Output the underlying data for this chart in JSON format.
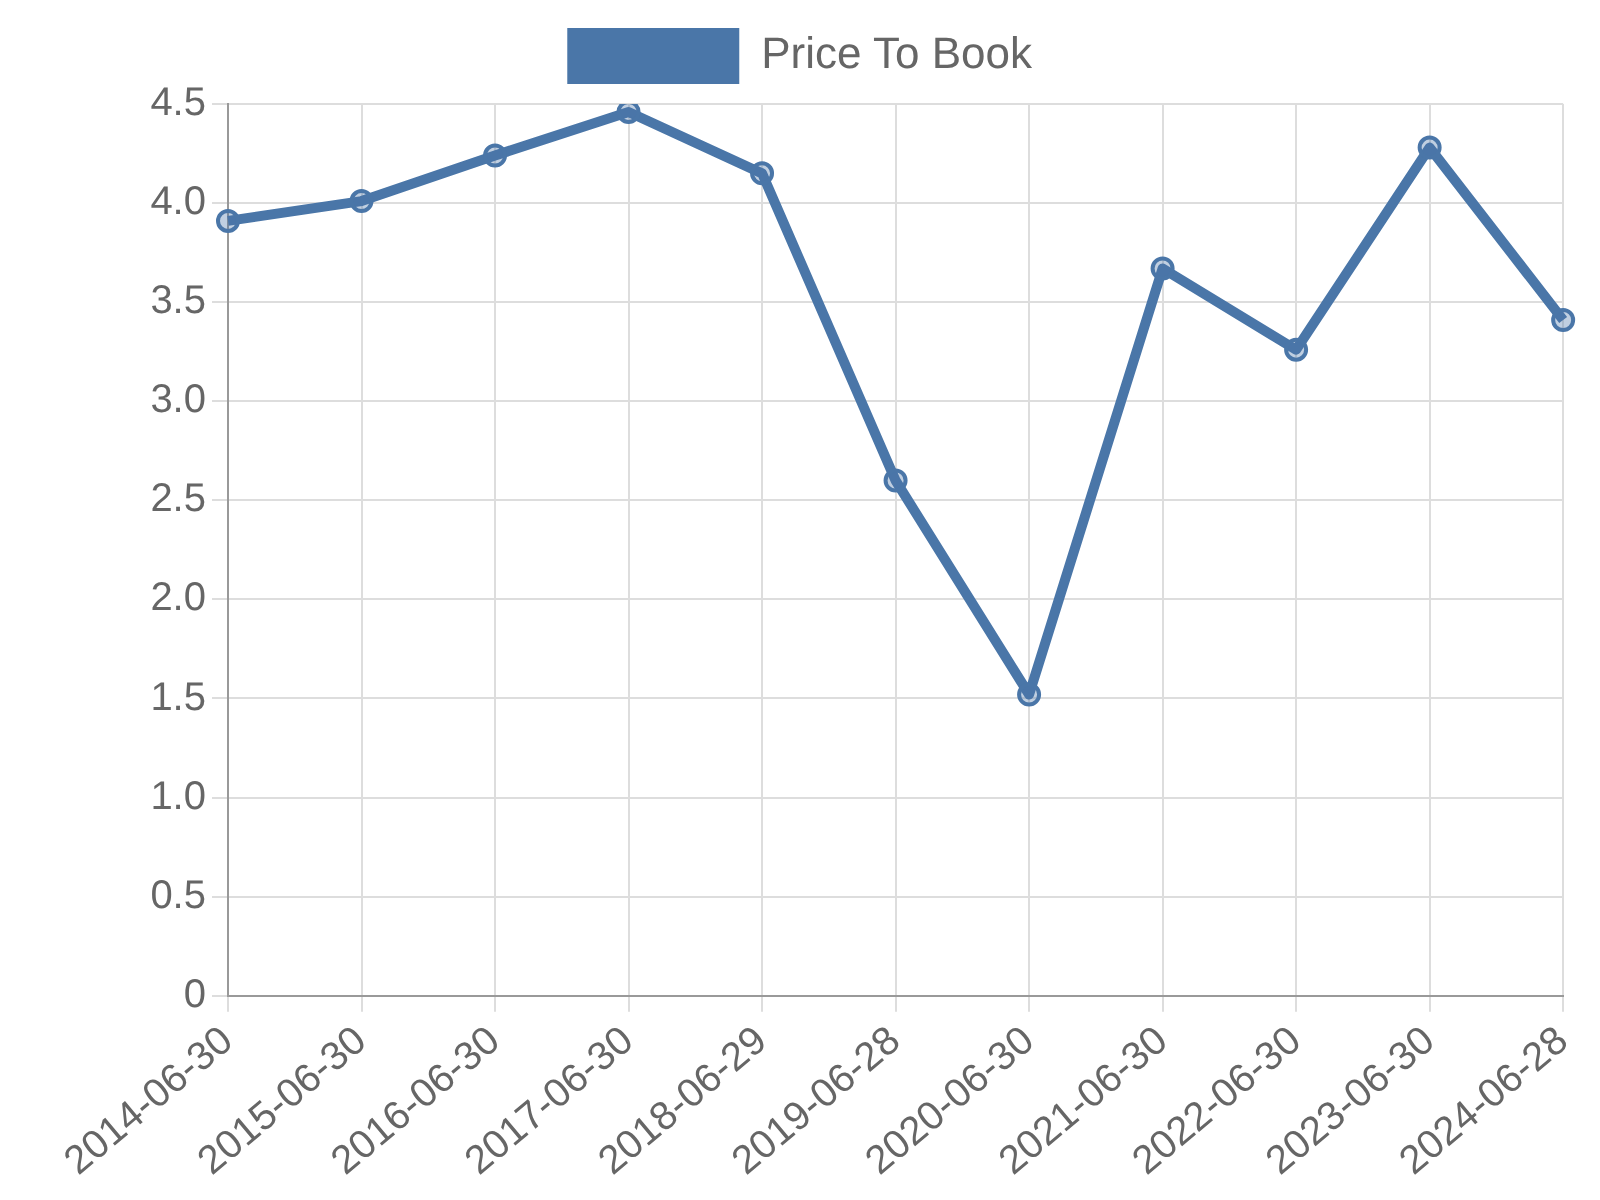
{
  "chart_data": {
    "type": "line",
    "categories": [
      "2014-06-30",
      "2015-06-30",
      "2016-06-30",
      "2017-06-30",
      "2018-06-29",
      "2019-06-28",
      "2020-06-30",
      "2021-06-30",
      "2022-06-30",
      "2023-06-30",
      "2024-06-28"
    ],
    "series": [
      {
        "name": "Price To Book",
        "color": "#4a76a8",
        "values": [
          3.91,
          4.01,
          4.24,
          4.46,
          4.15,
          2.6,
          1.52,
          3.67,
          3.26,
          4.28,
          3.41
        ]
      }
    ],
    "ylim": [
      0,
      4.5
    ],
    "yticks": [
      0,
      0.5,
      {
        "value": 1,
        "label": "1.0"
      },
      1.5,
      {
        "value": 2,
        "label": "2.0"
      },
      2.5,
      {
        "value": 3,
        "label": "3.0"
      },
      3.5,
      {
        "value": 4,
        "label": "4.0"
      },
      4.5
    ],
    "grid": true,
    "legend": "top",
    "marker": "circle",
    "line_style": "solid"
  }
}
